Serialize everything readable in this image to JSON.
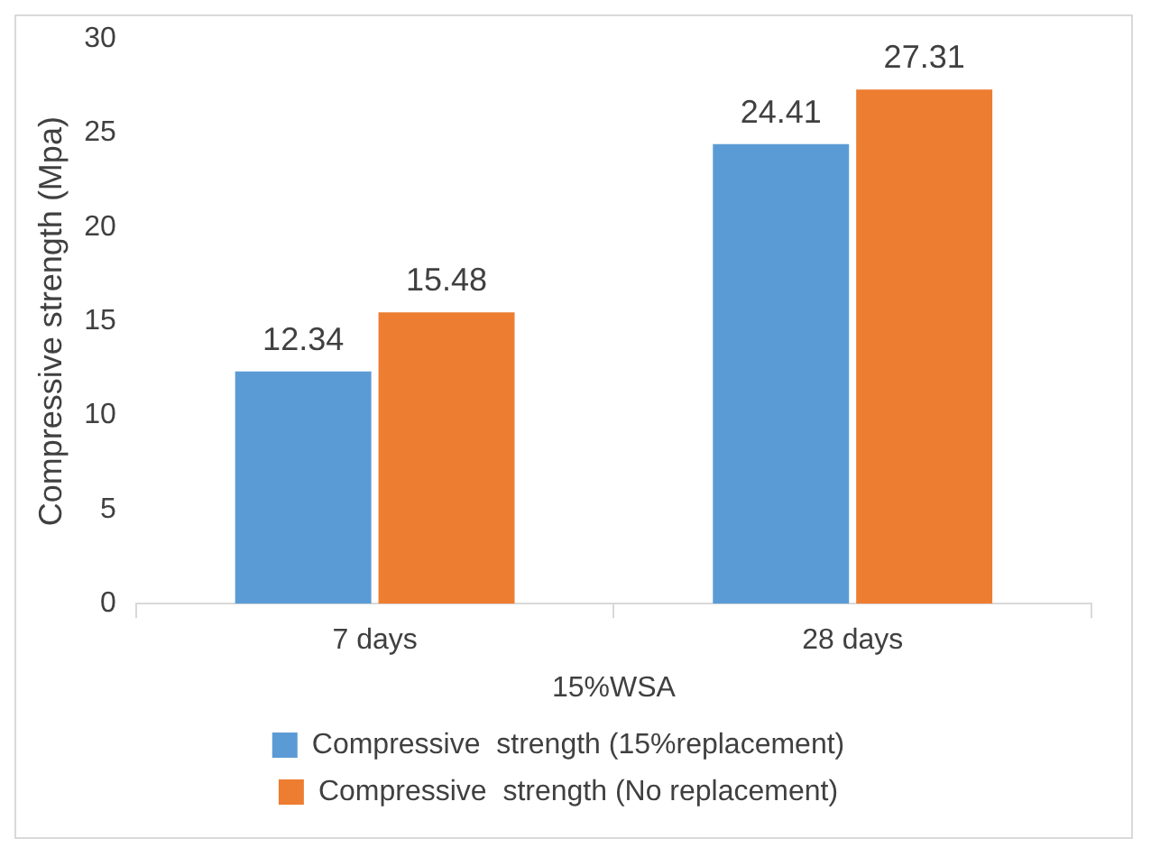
{
  "chart_data": {
    "type": "bar",
    "ylabel": "Compressive strength (Mpa)",
    "xlabel": "15%WSA",
    "categories": [
      "7 days",
      "28 days"
    ],
    "series": [
      {
        "name": "Compressive  strength (15%replacement)",
        "color": "#5b9bd5",
        "values": [
          12.34,
          24.41
        ]
      },
      {
        "name": "Compressive  strength (No replacement)",
        "color": "#ed7d31",
        "values": [
          15.48,
          27.31
        ]
      }
    ],
    "ylim": [
      0,
      30
    ],
    "yticks": [
      0,
      5,
      10,
      15,
      20,
      25,
      30
    ],
    "grid": false,
    "legend": "bottom",
    "data_labels": true
  }
}
